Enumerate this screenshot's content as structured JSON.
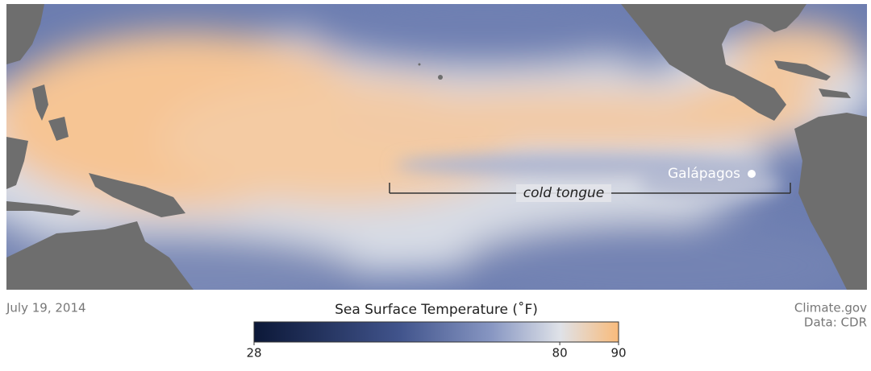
{
  "map": {
    "date": "July 19, 2014",
    "annotations": {
      "galapagos": "Galápagos",
      "cold_tongue": "cold tongue"
    },
    "credits": [
      "Climate.gov",
      "Data: CDR"
    ]
  },
  "legend": {
    "title": "Sea Surface Temperature (˚F)",
    "range": [
      28,
      90
    ],
    "ticks": [
      28,
      80,
      90
    ]
  }
}
